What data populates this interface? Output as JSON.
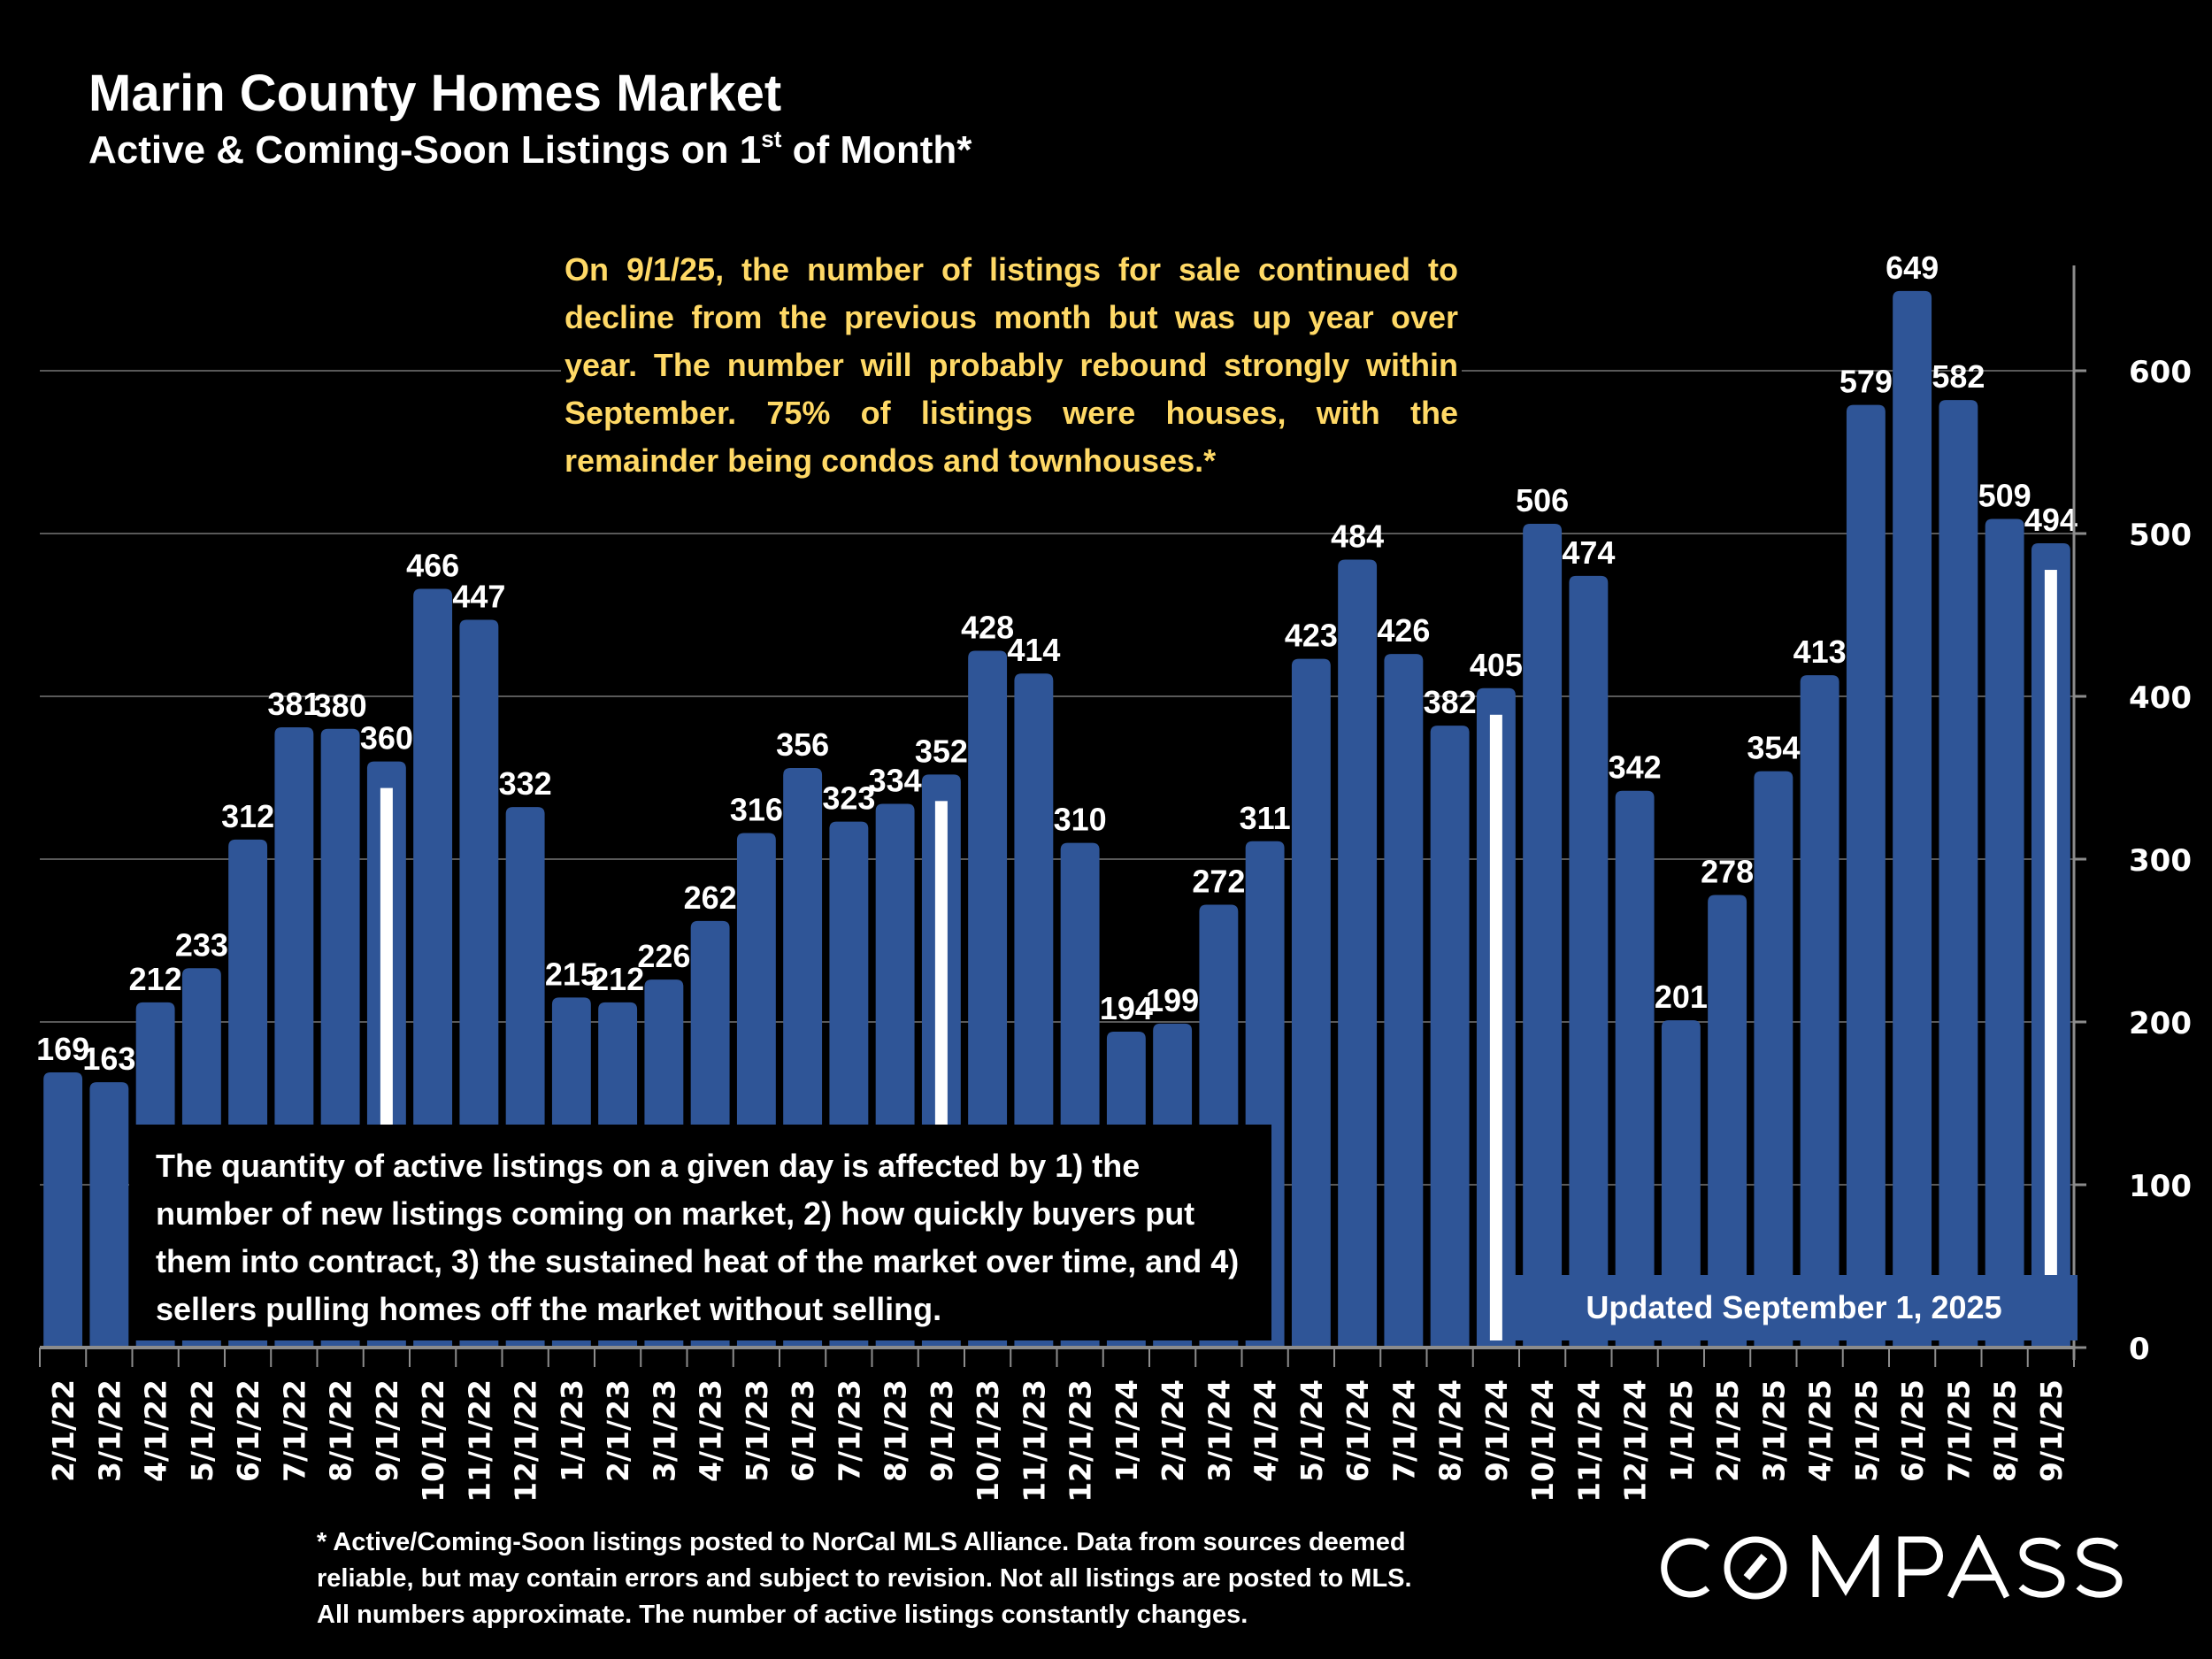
{
  "header": {
    "title": "Marin County Homes Market",
    "subtitle_main": "Active & Coming-Soon Listings on 1",
    "subtitle_sup": "st",
    "subtitle_end": " of Month*"
  },
  "annotations": {
    "highlight": "On 9/1/25, the number of listings for sale continued to decline from the previous month but was up year over year. The number will probably rebound strongly within September. 75% of listings were houses, with the remainder being condos and townhouses.*",
    "explanation": "The quantity of active listings on a given day is affected by 1) the number of new listings coming on market, 2) how quickly buyers put them into contract, 3) the sustained heat of the market over time, and 4) sellers pulling homes off the market without selling.",
    "updated": "Updated September 1, 2025"
  },
  "footnote": {
    "lines": [
      "* Active/Coming-Soon listings posted to NorCal MLS Alliance.  Data from sources deemed",
      "reliable, but may contain errors and subject to revision.  Not all listings are posted to MLS.",
      "All numbers approximate. The number of active listings constantly changes."
    ]
  },
  "logo": {
    "text": "COMPASS"
  },
  "colors": {
    "bar": "#2F5597",
    "highlight_text": "#FFD966",
    "marker": "#FFFFFF",
    "grid": "#595959",
    "axis": "#8C8C8C"
  },
  "chart_data": {
    "type": "bar",
    "title": "Marin County Homes Market",
    "subtitle": "Active & Coming-Soon Listings on 1st of Month*",
    "xlabel": "",
    "ylabel": "",
    "ylim": [
      0,
      660
    ],
    "yticks": [
      0,
      100,
      200,
      300,
      400,
      500,
      600
    ],
    "y_axis_position": "right",
    "grid": true,
    "categories": [
      "2/1/22",
      "3/1/22",
      "4/1/22",
      "5/1/22",
      "6/1/22",
      "7/1/22",
      "8/1/22",
      "9/1/22",
      "10/1/22",
      "11/1/22",
      "12/1/22",
      "1/1/23",
      "2/1/23",
      "3/1/23",
      "4/1/23",
      "5/1/23",
      "6/1/23",
      "7/1/23",
      "8/1/23",
      "9/1/23",
      "10/1/23",
      "11/1/23",
      "12/1/23",
      "1/1/24",
      "2/1/24",
      "3/1/24",
      "4/1/24",
      "5/1/24",
      "6/1/24",
      "7/1/24",
      "8/1/24",
      "9/1/24",
      "10/1/24",
      "11/1/24",
      "12/1/24",
      "1/1/25",
      "2/1/25",
      "3/1/25",
      "4/1/25",
      "5/1/25",
      "6/1/25",
      "7/1/25",
      "8/1/25",
      "9/1/25"
    ],
    "values": [
      169,
      163,
      212,
      233,
      312,
      381,
      380,
      360,
      466,
      447,
      332,
      215,
      212,
      226,
      262,
      316,
      356,
      323,
      334,
      352,
      428,
      414,
      310,
      194,
      199,
      272,
      311,
      423,
      484,
      426,
      382,
      405,
      506,
      474,
      342,
      201,
      278,
      354,
      413,
      579,
      649,
      582,
      509,
      494
    ],
    "highlighted_categories": [
      "9/1/22",
      "9/1/23",
      "9/1/24",
      "9/1/25"
    ]
  }
}
